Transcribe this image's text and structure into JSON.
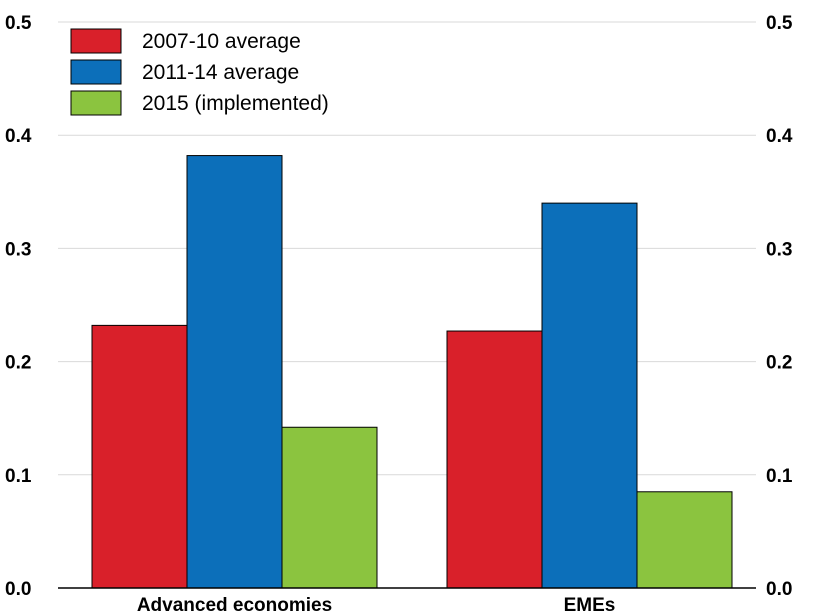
{
  "chart_data": {
    "type": "bar",
    "title": "",
    "xlabel": "",
    "ylabel": "",
    "categories": [
      "Advanced economies",
      "EMEs"
    ],
    "series": [
      {
        "name": "2007-10 average",
        "color": "#d9202a",
        "values": [
          0.232,
          0.227
        ]
      },
      {
        "name": "2011-14 average",
        "color": "#0c6fba",
        "values": [
          0.382,
          0.34
        ]
      },
      {
        "name": "2015 (implemented)",
        "color": "#8bc43f",
        "values": [
          0.142,
          0.085
        ]
      }
    ],
    "ylim": [
      0,
      0.5
    ],
    "yticks": [
      "0.0",
      "0.1",
      "0.2",
      "0.3",
      "0.4",
      "0.5"
    ],
    "right_axis_ticks": [
      "0.0",
      "0.1",
      "0.2",
      "0.3",
      "0.4",
      "0.5"
    ],
    "grid": true,
    "legend_position": "top-left"
  }
}
